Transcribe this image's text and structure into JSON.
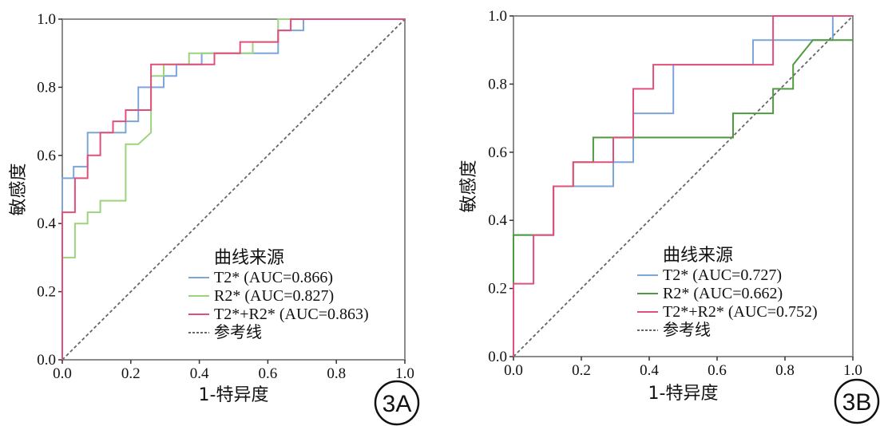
{
  "colors": {
    "t2": "#7aa6d8",
    "r2_a": "#9cd47e",
    "r2_b": "#4e9a3e",
    "combo": "#e0507a",
    "reference": "#666666",
    "frame": "#8c8c8c"
  },
  "chart_data": [
    {
      "type": "line",
      "panel_label": "3A",
      "xlabel": "1-特异度",
      "ylabel": "敏感度",
      "xlim": [
        0,
        1
      ],
      "ylim": [
        0,
        1
      ],
      "x_ticks": [
        "0.0",
        "0.2",
        "0.4",
        "0.6",
        "0.8",
        "1.0"
      ],
      "y_ticks": [
        "0.0",
        "0.2",
        "0.4",
        "0.6",
        "0.8",
        "1.0"
      ],
      "legend_title": "曲线来源",
      "legend_position": "bottom-right",
      "series": [
        {
          "name": "T2* (AUC=0.866)",
          "color_key": "t2",
          "points": [
            [
              0,
              0
            ],
            [
              0,
              0.533
            ],
            [
              0.033,
              0.533
            ],
            [
              0.033,
              0.567
            ],
            [
              0.074,
              0.567
            ],
            [
              0.074,
              0.667
            ],
            [
              0.185,
              0.667
            ],
            [
              0.185,
              0.7
            ],
            [
              0.222,
              0.7
            ],
            [
              0.222,
              0.8
            ],
            [
              0.259,
              0.8
            ],
            [
              0.259,
              0.8
            ],
            [
              0.296,
              0.8
            ],
            [
              0.296,
              0.833
            ],
            [
              0.333,
              0.833
            ],
            [
              0.333,
              0.867
            ],
            [
              0.37,
              0.867
            ],
            [
              0.37,
              0.867
            ],
            [
              0.407,
              0.867
            ],
            [
              0.407,
              0.9
            ],
            [
              0.63,
              0.9
            ],
            [
              0.63,
              0.933
            ],
            [
              0.63,
              0.967
            ],
            [
              0.667,
              0.967
            ],
            [
              0.704,
              0.967
            ],
            [
              0.704,
              1
            ],
            [
              1,
              1
            ]
          ]
        },
        {
          "name": "R2* (AUC=0.827)",
          "color_key": "r2_a",
          "points": [
            [
              0,
              0
            ],
            [
              0,
              0.3
            ],
            [
              0.037,
              0.3
            ],
            [
              0.037,
              0.4
            ],
            [
              0.074,
              0.4
            ],
            [
              0.074,
              0.433
            ],
            [
              0.111,
              0.433
            ],
            [
              0.111,
              0.467
            ],
            [
              0.185,
              0.467
            ],
            [
              0.185,
              0.633
            ],
            [
              0.222,
              0.633
            ],
            [
              0.222,
              0.633
            ],
            [
              0.259,
              0.667
            ],
            [
              0.259,
              0.833
            ],
            [
              0.296,
              0.833
            ],
            [
              0.296,
              0.867
            ],
            [
              0.333,
              0.867
            ],
            [
              0.333,
              0.867
            ],
            [
              0.37,
              0.867
            ],
            [
              0.37,
              0.9
            ],
            [
              0.556,
              0.9
            ],
            [
              0.556,
              0.933
            ],
            [
              0.63,
              0.933
            ],
            [
              0.63,
              1
            ],
            [
              1,
              1
            ]
          ]
        },
        {
          "name": "T2*+R2* (AUC=0.863)",
          "color_key": "combo",
          "points": [
            [
              0,
              0
            ],
            [
              0,
              0.433
            ],
            [
              0.037,
              0.433
            ],
            [
              0.037,
              0.533
            ],
            [
              0.074,
              0.533
            ],
            [
              0.074,
              0.6
            ],
            [
              0.111,
              0.6
            ],
            [
              0.111,
              0.667
            ],
            [
              0.148,
              0.667
            ],
            [
              0.148,
              0.7
            ],
            [
              0.185,
              0.7
            ],
            [
              0.185,
              0.733
            ],
            [
              0.259,
              0.733
            ],
            [
              0.259,
              0.867
            ],
            [
              0.444,
              0.867
            ],
            [
              0.444,
              0.9
            ],
            [
              0.519,
              0.9
            ],
            [
              0.519,
              0.933
            ],
            [
              0.63,
              0.933
            ],
            [
              0.63,
              0.967
            ],
            [
              0.667,
              0.967
            ],
            [
              0.667,
              1
            ],
            [
              1,
              1
            ]
          ]
        },
        {
          "name": "参考线",
          "color_key": "reference",
          "dashed": true,
          "points": [
            [
              0,
              0
            ],
            [
              1,
              1
            ]
          ]
        }
      ]
    },
    {
      "type": "line",
      "panel_label": "3B",
      "xlabel": "1-特异度",
      "ylabel": "敏感度",
      "xlim": [
        0,
        1
      ],
      "ylim": [
        0,
        1
      ],
      "x_ticks": [
        "0.0",
        "0.2",
        "0.4",
        "0.6",
        "0.8",
        "1.0"
      ],
      "y_ticks": [
        "0.0",
        "0.2",
        "0.4",
        "0.6",
        "0.8",
        "1.0"
      ],
      "legend_title": "曲线来源",
      "legend_position": "bottom-right",
      "series": [
        {
          "name": "T2* (AUC=0.727)",
          "color_key": "t2",
          "points": [
            [
              0,
              0
            ],
            [
              0,
              0.357
            ],
            [
              0.118,
              0.357
            ],
            [
              0.118,
              0.5
            ],
            [
              0.294,
              0.5
            ],
            [
              0.294,
              0.571
            ],
            [
              0.353,
              0.571
            ],
            [
              0.353,
              0.714
            ],
            [
              0.471,
              0.714
            ],
            [
              0.471,
              0.857
            ],
            [
              0.706,
              0.857
            ],
            [
              0.706,
              0.929
            ],
            [
              0.941,
              0.929
            ],
            [
              0.941,
              1
            ],
            [
              1,
              1
            ]
          ]
        },
        {
          "name": "R2* (AUC=0.662)",
          "color_key": "r2_b",
          "points": [
            [
              0,
              0
            ],
            [
              0,
              0.357
            ],
            [
              0.118,
              0.357
            ],
            [
              0.118,
              0.5
            ],
            [
              0.176,
              0.5
            ],
            [
              0.176,
              0.571
            ],
            [
              0.235,
              0.571
            ],
            [
              0.235,
              0.643
            ],
            [
              0.647,
              0.643
            ],
            [
              0.647,
              0.714
            ],
            [
              0.765,
              0.714
            ],
            [
              0.765,
              0.786
            ],
            [
              0.824,
              0.786
            ],
            [
              0.824,
              0.857
            ],
            [
              0.882,
              0.929
            ],
            [
              1,
              0.929
            ]
          ]
        },
        {
          "name": "T2*+R2* (AUC=0.752)",
          "color_key": "combo",
          "points": [
            [
              0,
              0
            ],
            [
              0,
              0.214
            ],
            [
              0.059,
              0.214
            ],
            [
              0.059,
              0.357
            ],
            [
              0.118,
              0.357
            ],
            [
              0.118,
              0.5
            ],
            [
              0.176,
              0.5
            ],
            [
              0.176,
              0.571
            ],
            [
              0.294,
              0.571
            ],
            [
              0.294,
              0.643
            ],
            [
              0.353,
              0.643
            ],
            [
              0.353,
              0.786
            ],
            [
              0.412,
              0.786
            ],
            [
              0.412,
              0.857
            ],
            [
              0.765,
              0.857
            ],
            [
              0.765,
              1
            ],
            [
              1,
              1
            ]
          ]
        },
        {
          "name": "参考线",
          "color_key": "reference",
          "dashed": true,
          "points": [
            [
              0,
              0
            ],
            [
              1,
              1
            ]
          ]
        }
      ]
    }
  ]
}
